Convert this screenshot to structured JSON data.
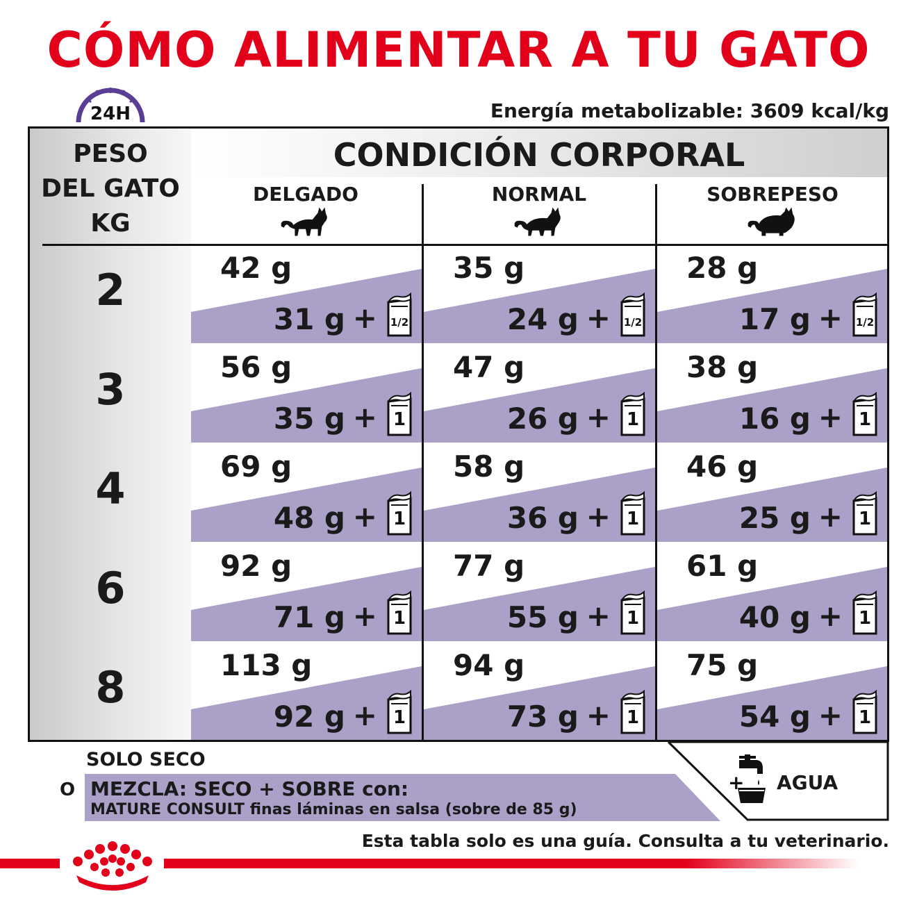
{
  "title": "CÓMO ALIMENTAR A TU GATO",
  "clock_label": "24H",
  "energy": "Energía metabolizable: 3609 kcal/kg",
  "weight_header": [
    "PESO",
    "DEL GATO",
    "KG"
  ],
  "condition_title": "CONDICIÓN CORPORAL",
  "columns": [
    "DELGADO",
    "NORMAL",
    "SOBREPESO"
  ],
  "rows": [
    {
      "weight": "2",
      "cells": [
        {
          "dry": "42 g",
          "mix": "31 g",
          "pouch": "1/2"
        },
        {
          "dry": "35 g",
          "mix": "24 g",
          "pouch": "1/2"
        },
        {
          "dry": "28 g",
          "mix": "17 g",
          "pouch": "1/2"
        }
      ]
    },
    {
      "weight": "3",
      "cells": [
        {
          "dry": "56 g",
          "mix": "35 g",
          "pouch": "1"
        },
        {
          "dry": "47 g",
          "mix": "26 g",
          "pouch": "1"
        },
        {
          "dry": "38 g",
          "mix": "16 g",
          "pouch": "1"
        }
      ]
    },
    {
      "weight": "4",
      "cells": [
        {
          "dry": "69 g",
          "mix": "48 g",
          "pouch": "1"
        },
        {
          "dry": "58 g",
          "mix": "36 g",
          "pouch": "1"
        },
        {
          "dry": "46 g",
          "mix": "25 g",
          "pouch": "1"
        }
      ]
    },
    {
      "weight": "6",
      "cells": [
        {
          "dry": "92 g",
          "mix": "71 g",
          "pouch": "1"
        },
        {
          "dry": "77 g",
          "mix": "55 g",
          "pouch": "1"
        },
        {
          "dry": "61 g",
          "mix": "40 g",
          "pouch": "1"
        }
      ]
    },
    {
      "weight": "8",
      "cells": [
        {
          "dry": "113 g",
          "mix": "92 g",
          "pouch": "1"
        },
        {
          "dry": "94 g",
          "mix": "73 g",
          "pouch": "1"
        },
        {
          "dry": "75 g",
          "mix": "54 g",
          "pouch": "1"
        }
      ]
    }
  ],
  "plus_sign": "+",
  "legend": {
    "dry_only": "SOLO SECO",
    "or": "O",
    "mix": "MEZCLA: SECO + SOBRE con:",
    "product_name": "MATURE CONSULT",
    "product_rest": " finas láminas en salsa (sobre de 85 g)",
    "water_plus": "+",
    "water": "AGUA"
  },
  "disclaimer": "Esta tabla solo es una guía. Consulta a tu veterinario.",
  "colors": {
    "brand_red": "#e2001a",
    "purple_band": "#aaa0c8",
    "clock_purple": "#5a3d95"
  }
}
